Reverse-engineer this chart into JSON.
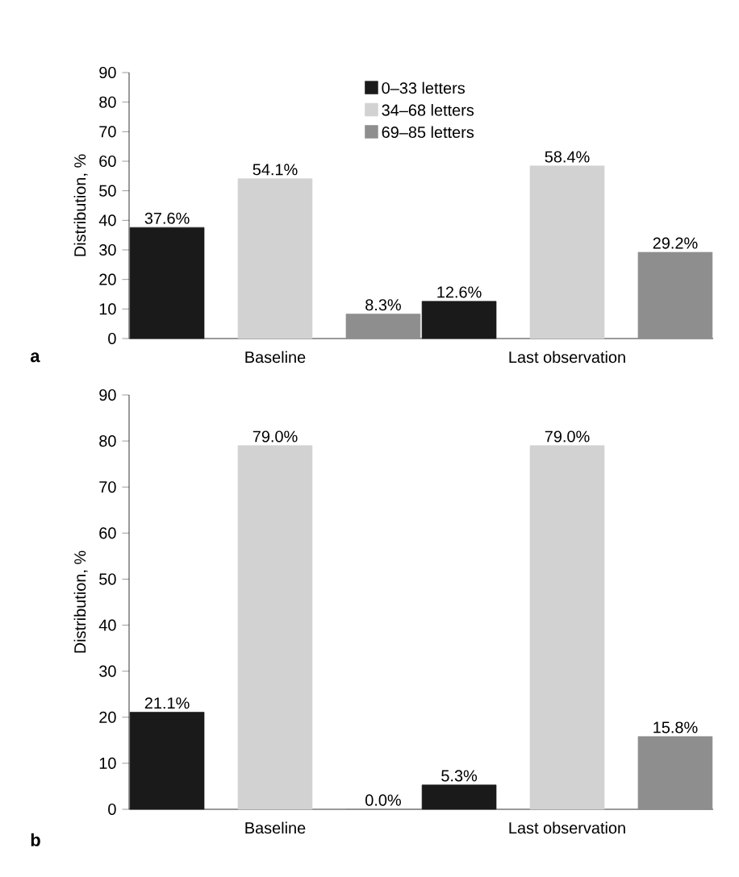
{
  "chart_data": [
    {
      "type": "bar",
      "ylabel": "Distribution, %",
      "categories": [
        "Baseline",
        "Last observation"
      ],
      "ylim": [
        0,
        90
      ],
      "yticks": [
        0,
        10,
        20,
        30,
        40,
        50,
        60,
        70,
        80,
        90
      ],
      "grid": false,
      "legend": "top",
      "annotations": [
        "a"
      ],
      "series": [
        {
          "name": "0–33 letters",
          "color": "#1a1a1a",
          "values": [
            37.6,
            12.6
          ],
          "value_labels": [
            "37.6%",
            "12.6%"
          ]
        },
        {
          "name": "34–68 letters",
          "color": "#d2d2d2",
          "values": [
            54.1,
            58.4
          ],
          "value_labels": [
            "54.1%",
            "58.4%"
          ]
        },
        {
          "name": "69–85 letters",
          "color": "#8e8e8e",
          "values": [
            8.3,
            29.2
          ],
          "value_labels": [
            "8.3%",
            "29.2%"
          ]
        }
      ]
    },
    {
      "type": "bar",
      "ylabel": "Distribution, %",
      "categories": [
        "Baseline",
        "Last observation"
      ],
      "ylim": [
        0,
        90
      ],
      "yticks": [
        0,
        10,
        20,
        30,
        40,
        50,
        60,
        70,
        80,
        90
      ],
      "grid": false,
      "legend": false,
      "annotations": [
        "b"
      ],
      "series": [
        {
          "color": "#1a1a1a",
          "values": [
            21.1,
            5.3
          ],
          "value_labels": [
            "21.1%",
            "5.3%"
          ]
        },
        {
          "color": "#d2d2d2",
          "values": [
            79.0,
            79.0
          ],
          "value_labels": [
            "79.0%",
            "79.0%"
          ]
        },
        {
          "color": "#8e8e8e",
          "values": [
            0.0,
            15.8
          ],
          "value_labels": [
            "0.0%",
            "15.8%"
          ]
        }
      ]
    }
  ]
}
